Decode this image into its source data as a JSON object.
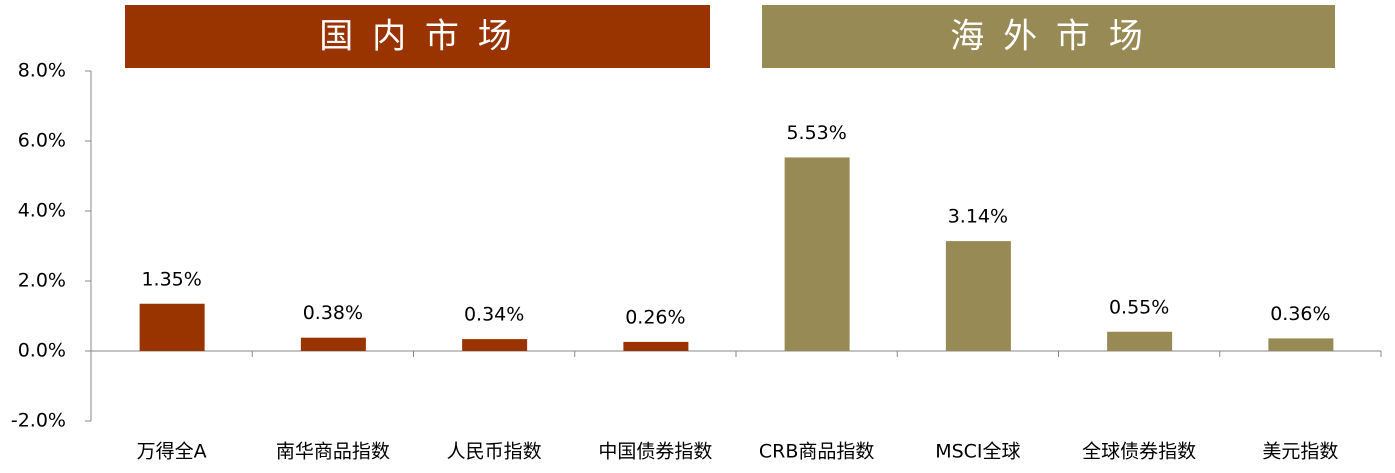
{
  "chart_data": {
    "type": "bar",
    "groups": [
      {
        "name": "国 内 市 场",
        "color": "#993300"
      },
      {
        "name": "海 外 市 场",
        "color": "#978a54"
      }
    ],
    "categories": [
      "万得全A",
      "南华商品指数",
      "人民币指数",
      "中国债券指数",
      "CRB商品指数",
      "MSCI全球",
      "全球债券指数",
      "美元指数"
    ],
    "values": [
      1.35,
      0.38,
      0.34,
      0.26,
      5.53,
      3.14,
      0.55,
      0.36
    ],
    "value_labels": [
      "1.35%",
      "0.38%",
      "0.34%",
      "0.26%",
      "5.53%",
      "3.14%",
      "0.55%",
      "0.36%"
    ],
    "colors": [
      "#993300",
      "#993300",
      "#993300",
      "#993300",
      "#978a54",
      "#978a54",
      "#978a54",
      "#978a54"
    ],
    "ylim": [
      -2,
      8
    ],
    "yticks": [
      {
        "value": -2,
        "label": "-2.0%"
      },
      {
        "value": 0,
        "label": "0.0%"
      },
      {
        "value": 2,
        "label": "2.0%"
      },
      {
        "value": 4,
        "label": "4.0%"
      },
      {
        "value": 6,
        "label": "6.0%"
      },
      {
        "value": 8,
        "label": "8.0%"
      }
    ]
  }
}
